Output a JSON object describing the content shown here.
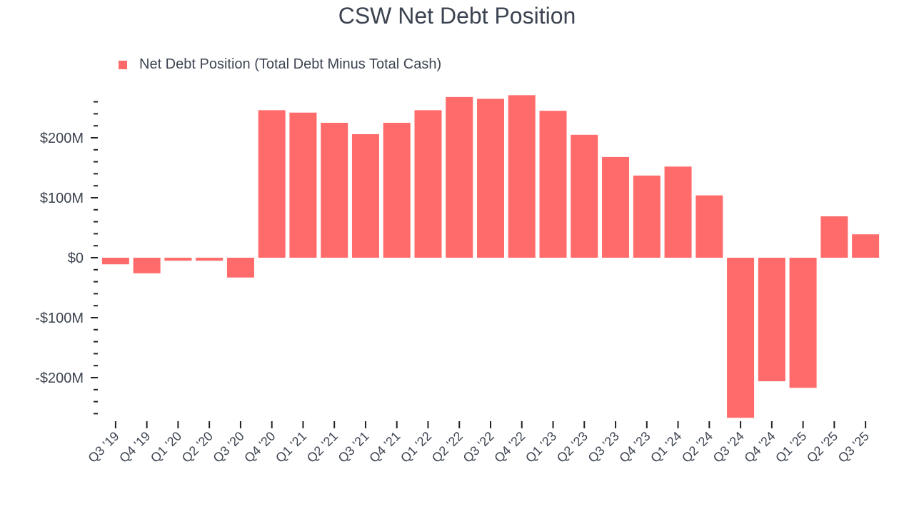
{
  "chart_data": {
    "type": "bar",
    "title": "CSW Net Debt Position",
    "legend": [
      "Net Debt Position (Total Debt Minus Total Cash)"
    ],
    "legend_position": "top-left",
    "categories": [
      "Q3 '19",
      "Q4 '19",
      "Q1 '20",
      "Q2 '20",
      "Q3 '20",
      "Q4 '20",
      "Q1 '21",
      "Q2 '21",
      "Q3 '21",
      "Q4 '21",
      "Q1 '22",
      "Q2 '22",
      "Q3 '22",
      "Q4 '22",
      "Q1 '23",
      "Q2 '23",
      "Q3 '23",
      "Q4 '23",
      "Q1 '24",
      "Q2 '24",
      "Q3 '24",
      "Q4 '24",
      "Q1 '25",
      "Q2 '25",
      "Q3 '25"
    ],
    "values": [
      -11,
      -26,
      -5,
      -5,
      -33,
      246,
      242,
      225,
      206,
      225,
      246,
      268,
      265,
      271,
      245,
      205,
      168,
      137,
      152,
      104,
      -267,
      -206,
      -217,
      69,
      39
    ],
    "unit": "$M",
    "yticks": [
      200,
      100,
      0,
      -100,
      -200
    ],
    "ytick_labels": [
      "$200M",
      "$100M",
      "$0",
      "-$100M",
      "-$200M"
    ],
    "ylim": [
      -270,
      270
    ],
    "xlabel": "",
    "ylabel": "",
    "grid": false,
    "color": "#ff6b6b"
  }
}
